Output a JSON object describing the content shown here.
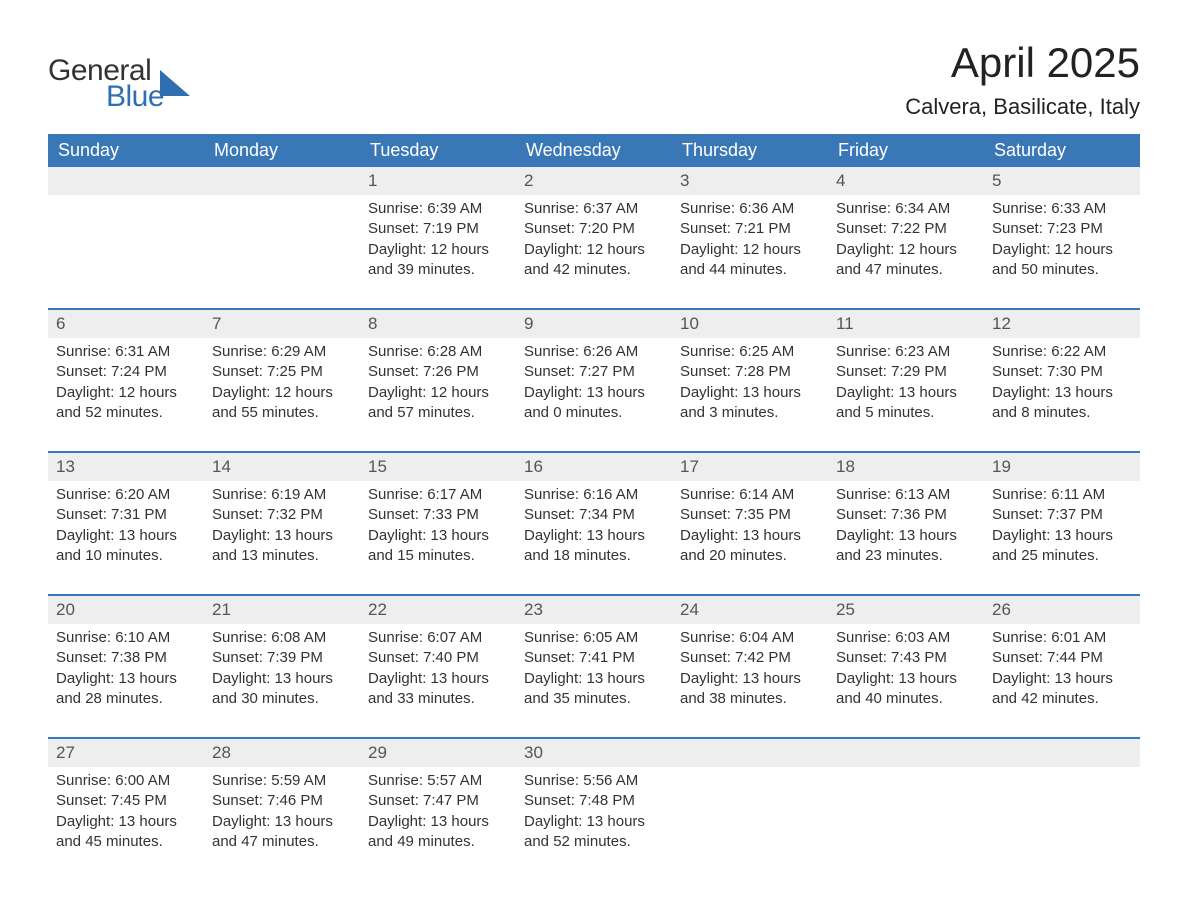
{
  "logo": {
    "text1": "General",
    "text2": "Blue",
    "shape_color": "#2f6fb0"
  },
  "title": "April 2025",
  "location": "Calvera, Basilicate, Italy",
  "colors": {
    "header_bg": "#3a77b7",
    "header_text": "#ffffff",
    "daynum_bg": "#eeeeee",
    "daynum_text": "#555555",
    "body_text": "#333333",
    "week_separator": "#3a77b7",
    "page_bg": "#ffffff"
  },
  "typography": {
    "title_fontsize": 42,
    "location_fontsize": 22,
    "header_fontsize": 18,
    "daynum_fontsize": 17,
    "body_fontsize": 15
  },
  "day_headers": [
    "Sunday",
    "Monday",
    "Tuesday",
    "Wednesday",
    "Thursday",
    "Friday",
    "Saturday"
  ],
  "weeks": [
    [
      null,
      null,
      {
        "n": "1",
        "sunrise": "6:39 AM",
        "sunset": "7:19 PM",
        "dl1": "Daylight: 12 hours",
        "dl2": "and 39 minutes."
      },
      {
        "n": "2",
        "sunrise": "6:37 AM",
        "sunset": "7:20 PM",
        "dl1": "Daylight: 12 hours",
        "dl2": "and 42 minutes."
      },
      {
        "n": "3",
        "sunrise": "6:36 AM",
        "sunset": "7:21 PM",
        "dl1": "Daylight: 12 hours",
        "dl2": "and 44 minutes."
      },
      {
        "n": "4",
        "sunrise": "6:34 AM",
        "sunset": "7:22 PM",
        "dl1": "Daylight: 12 hours",
        "dl2": "and 47 minutes."
      },
      {
        "n": "5",
        "sunrise": "6:33 AM",
        "sunset": "7:23 PM",
        "dl1": "Daylight: 12 hours",
        "dl2": "and 50 minutes."
      }
    ],
    [
      {
        "n": "6",
        "sunrise": "6:31 AM",
        "sunset": "7:24 PM",
        "dl1": "Daylight: 12 hours",
        "dl2": "and 52 minutes."
      },
      {
        "n": "7",
        "sunrise": "6:29 AM",
        "sunset": "7:25 PM",
        "dl1": "Daylight: 12 hours",
        "dl2": "and 55 minutes."
      },
      {
        "n": "8",
        "sunrise": "6:28 AM",
        "sunset": "7:26 PM",
        "dl1": "Daylight: 12 hours",
        "dl2": "and 57 minutes."
      },
      {
        "n": "9",
        "sunrise": "6:26 AM",
        "sunset": "7:27 PM",
        "dl1": "Daylight: 13 hours",
        "dl2": "and 0 minutes."
      },
      {
        "n": "10",
        "sunrise": "6:25 AM",
        "sunset": "7:28 PM",
        "dl1": "Daylight: 13 hours",
        "dl2": "and 3 minutes."
      },
      {
        "n": "11",
        "sunrise": "6:23 AM",
        "sunset": "7:29 PM",
        "dl1": "Daylight: 13 hours",
        "dl2": "and 5 minutes."
      },
      {
        "n": "12",
        "sunrise": "6:22 AM",
        "sunset": "7:30 PM",
        "dl1": "Daylight: 13 hours",
        "dl2": "and 8 minutes."
      }
    ],
    [
      {
        "n": "13",
        "sunrise": "6:20 AM",
        "sunset": "7:31 PM",
        "dl1": "Daylight: 13 hours",
        "dl2": "and 10 minutes."
      },
      {
        "n": "14",
        "sunrise": "6:19 AM",
        "sunset": "7:32 PM",
        "dl1": "Daylight: 13 hours",
        "dl2": "and 13 minutes."
      },
      {
        "n": "15",
        "sunrise": "6:17 AM",
        "sunset": "7:33 PM",
        "dl1": "Daylight: 13 hours",
        "dl2": "and 15 minutes."
      },
      {
        "n": "16",
        "sunrise": "6:16 AM",
        "sunset": "7:34 PM",
        "dl1": "Daylight: 13 hours",
        "dl2": "and 18 minutes."
      },
      {
        "n": "17",
        "sunrise": "6:14 AM",
        "sunset": "7:35 PM",
        "dl1": "Daylight: 13 hours",
        "dl2": "and 20 minutes."
      },
      {
        "n": "18",
        "sunrise": "6:13 AM",
        "sunset": "7:36 PM",
        "dl1": "Daylight: 13 hours",
        "dl2": "and 23 minutes."
      },
      {
        "n": "19",
        "sunrise": "6:11 AM",
        "sunset": "7:37 PM",
        "dl1": "Daylight: 13 hours",
        "dl2": "and 25 minutes."
      }
    ],
    [
      {
        "n": "20",
        "sunrise": "6:10 AM",
        "sunset": "7:38 PM",
        "dl1": "Daylight: 13 hours",
        "dl2": "and 28 minutes."
      },
      {
        "n": "21",
        "sunrise": "6:08 AM",
        "sunset": "7:39 PM",
        "dl1": "Daylight: 13 hours",
        "dl2": "and 30 minutes."
      },
      {
        "n": "22",
        "sunrise": "6:07 AM",
        "sunset": "7:40 PM",
        "dl1": "Daylight: 13 hours",
        "dl2": "and 33 minutes."
      },
      {
        "n": "23",
        "sunrise": "6:05 AM",
        "sunset": "7:41 PM",
        "dl1": "Daylight: 13 hours",
        "dl2": "and 35 minutes."
      },
      {
        "n": "24",
        "sunrise": "6:04 AM",
        "sunset": "7:42 PM",
        "dl1": "Daylight: 13 hours",
        "dl2": "and 38 minutes."
      },
      {
        "n": "25",
        "sunrise": "6:03 AM",
        "sunset": "7:43 PM",
        "dl1": "Daylight: 13 hours",
        "dl2": "and 40 minutes."
      },
      {
        "n": "26",
        "sunrise": "6:01 AM",
        "sunset": "7:44 PM",
        "dl1": "Daylight: 13 hours",
        "dl2": "and 42 minutes."
      }
    ],
    [
      {
        "n": "27",
        "sunrise": "6:00 AM",
        "sunset": "7:45 PM",
        "dl1": "Daylight: 13 hours",
        "dl2": "and 45 minutes."
      },
      {
        "n": "28",
        "sunrise": "5:59 AM",
        "sunset": "7:46 PM",
        "dl1": "Daylight: 13 hours",
        "dl2": "and 47 minutes."
      },
      {
        "n": "29",
        "sunrise": "5:57 AM",
        "sunset": "7:47 PM",
        "dl1": "Daylight: 13 hours",
        "dl2": "and 49 minutes."
      },
      {
        "n": "30",
        "sunrise": "5:56 AM",
        "sunset": "7:48 PM",
        "dl1": "Daylight: 13 hours",
        "dl2": "and 52 minutes."
      },
      null,
      null,
      null
    ]
  ],
  "labels": {
    "sunrise_prefix": "Sunrise: ",
    "sunset_prefix": "Sunset: "
  }
}
